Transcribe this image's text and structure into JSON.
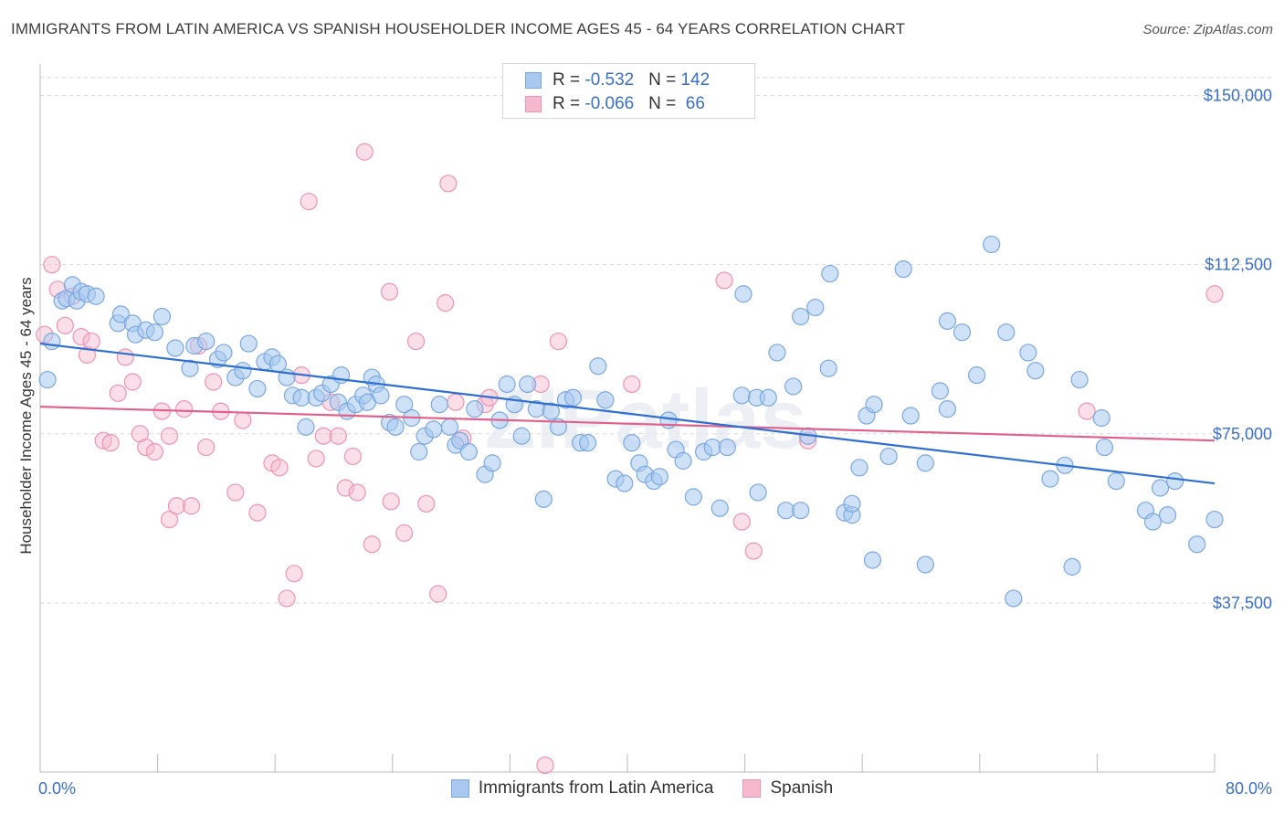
{
  "header": {
    "title": "IMMIGRANTS FROM LATIN AMERICA VS SPANISH HOUSEHOLDER INCOME AGES 45 - 64 YEARS CORRELATION CHART",
    "source": "Source: ZipAtlas.com"
  },
  "legend": {
    "rows": [
      {
        "r_label": "R = ",
        "r_value": "-0.532",
        "n_label": "   N = ",
        "n_value": "142"
      },
      {
        "r_label": "R = ",
        "r_value": "-0.066",
        "n_label": "   N = ",
        "n_value": " 66"
      }
    ]
  },
  "colors": {
    "blue_fill": "#a8c8f0",
    "blue_stroke": "#7aa8e0",
    "blue_line": "#2e6fd1",
    "pink_fill": "#f5b8cc",
    "pink_stroke": "#ee93b1",
    "pink_line": "#e0628c",
    "axis_label": "#3a6fc4",
    "grid": "#d9d9d9"
  },
  "watermark": "ZIPatlas",
  "chart_data": {
    "type": "scatter",
    "title": "IMMIGRANTS FROM LATIN AMERICA VS SPANISH HOUSEHOLDER INCOME AGES 45 - 64 YEARS CORRELATION CHART",
    "xlabel": "",
    "ylabel": "Householder Income Ages 45 - 64 years",
    "xlim": [
      0,
      80
    ],
    "ylim": [
      0,
      157000
    ],
    "x_tick_labels": [
      "0.0%",
      "80.0%"
    ],
    "y_ticks": [
      37500,
      75000,
      112500,
      150000
    ],
    "y_tick_labels": [
      "$37,500",
      "$75,000",
      "$112,500",
      "$150,000"
    ],
    "grid": true,
    "legend_position": "bottom",
    "series": [
      {
        "name": "Immigrants from Latin America",
        "r": -0.532,
        "n": 142,
        "trend": {
          "x": [
            0,
            80
          ],
          "y": [
            95000,
            64000
          ]
        },
        "points": [
          [
            0.5,
            87000
          ],
          [
            0.8,
            95500
          ],
          [
            1.5,
            104500
          ],
          [
            1.8,
            105000
          ],
          [
            2.2,
            108000
          ],
          [
            2.5,
            104500
          ],
          [
            2.8,
            106500
          ],
          [
            3.2,
            106000
          ],
          [
            3.8,
            105500
          ],
          [
            5.3,
            99500
          ],
          [
            5.5,
            101500
          ],
          [
            6.3,
            99500
          ],
          [
            6.5,
            97000
          ],
          [
            7.2,
            98000
          ],
          [
            7.8,
            97500
          ],
          [
            8.3,
            101000
          ],
          [
            9.2,
            94000
          ],
          [
            10.2,
            89500
          ],
          [
            10.5,
            94500
          ],
          [
            11.3,
            95500
          ],
          [
            12.1,
            91500
          ],
          [
            12.5,
            93000
          ],
          [
            13.3,
            87500
          ],
          [
            13.8,
            89000
          ],
          [
            14.2,
            95000
          ],
          [
            14.8,
            85000
          ],
          [
            15.3,
            91000
          ],
          [
            15.8,
            92000
          ],
          [
            16.2,
            90500
          ],
          [
            16.8,
            87500
          ],
          [
            17.2,
            83500
          ],
          [
            17.8,
            83000
          ],
          [
            18.1,
            76500
          ],
          [
            18.8,
            83000
          ],
          [
            19.2,
            84000
          ],
          [
            19.8,
            86000
          ],
          [
            20.3,
            82000
          ],
          [
            20.5,
            88000
          ],
          [
            20.9,
            80000
          ],
          [
            21.5,
            81500
          ],
          [
            22.0,
            83500
          ],
          [
            22.3,
            82000
          ],
          [
            22.6,
            87500
          ],
          [
            22.9,
            86000
          ],
          [
            23.2,
            83500
          ],
          [
            23.8,
            77500
          ],
          [
            24.2,
            76500
          ],
          [
            24.8,
            81500
          ],
          [
            25.3,
            78500
          ],
          [
            25.8,
            71000
          ],
          [
            26.2,
            74500
          ],
          [
            26.8,
            76000
          ],
          [
            27.2,
            81500
          ],
          [
            27.9,
            76500
          ],
          [
            28.3,
            72500
          ],
          [
            28.6,
            73500
          ],
          [
            29.2,
            71000
          ],
          [
            29.6,
            80500
          ],
          [
            30.3,
            66000
          ],
          [
            30.8,
            68500
          ],
          [
            31.3,
            78000
          ],
          [
            31.8,
            86000
          ],
          [
            32.3,
            81500
          ],
          [
            32.8,
            74500
          ],
          [
            33.2,
            86000
          ],
          [
            33.8,
            80500
          ],
          [
            34.3,
            60500
          ],
          [
            34.8,
            80000
          ],
          [
            35.3,
            76500
          ],
          [
            35.8,
            82500
          ],
          [
            36.3,
            83000
          ],
          [
            36.8,
            73000
          ],
          [
            37.3,
            73000
          ],
          [
            38.0,
            90000
          ],
          [
            38.5,
            82500
          ],
          [
            39.2,
            65000
          ],
          [
            39.8,
            64000
          ],
          [
            40.3,
            73000
          ],
          [
            40.8,
            68500
          ],
          [
            41.2,
            66000
          ],
          [
            41.8,
            64500
          ],
          [
            42.2,
            65500
          ],
          [
            42.8,
            78000
          ],
          [
            43.3,
            71500
          ],
          [
            43.8,
            69000
          ],
          [
            44.5,
            61000
          ],
          [
            45.2,
            71000
          ],
          [
            45.8,
            72000
          ],
          [
            46.3,
            58500
          ],
          [
            46.8,
            72000
          ],
          [
            47.8,
            83500
          ],
          [
            47.9,
            106000
          ],
          [
            48.8,
            83000
          ],
          [
            48.9,
            62000
          ],
          [
            49.6,
            83000
          ],
          [
            50.2,
            93000
          ],
          [
            50.8,
            58000
          ],
          [
            51.3,
            85500
          ],
          [
            51.8,
            58000
          ],
          [
            52.3,
            74500
          ],
          [
            51.8,
            101000
          ],
          [
            52.8,
            103000
          ],
          [
            53.7,
            89500
          ],
          [
            53.8,
            110500
          ],
          [
            54.8,
            57500
          ],
          [
            55.3,
            57000
          ],
          [
            55.8,
            67500
          ],
          [
            56.3,
            79000
          ],
          [
            56.8,
            81500
          ],
          [
            56.7,
            47000
          ],
          [
            57.8,
            70000
          ],
          [
            58.8,
            111500
          ],
          [
            59.3,
            79000
          ],
          [
            60.3,
            68500
          ],
          [
            60.3,
            46000
          ],
          [
            61.3,
            84500
          ],
          [
            61.8,
            100000
          ],
          [
            61.8,
            80500
          ],
          [
            62.8,
            97500
          ],
          [
            63.8,
            88000
          ],
          [
            64.8,
            117000
          ],
          [
            65.8,
            97500
          ],
          [
            66.3,
            38500
          ],
          [
            67.3,
            93000
          ],
          [
            67.8,
            89000
          ],
          [
            68.8,
            65000
          ],
          [
            69.8,
            68000
          ],
          [
            70.3,
            45500
          ],
          [
            70.8,
            87000
          ],
          [
            72.3,
            78500
          ],
          [
            72.5,
            72000
          ],
          [
            73.3,
            64500
          ],
          [
            75.3,
            58000
          ],
          [
            75.8,
            55500
          ],
          [
            76.3,
            63000
          ],
          [
            76.8,
            57000
          ],
          [
            77.3,
            64500
          ],
          [
            78.8,
            50500
          ],
          [
            80.0,
            56000
          ],
          [
            55.3,
            59500
          ]
        ]
      },
      {
        "name": "Spanish",
        "r": -0.066,
        "n": 66,
        "trend": {
          "x": [
            0,
            80
          ],
          "y": [
            81000,
            73500
          ]
        },
        "points": [
          [
            0.3,
            97000
          ],
          [
            0.8,
            112500
          ],
          [
            1.2,
            107000
          ],
          [
            1.7,
            99000
          ],
          [
            2.2,
            105500
          ],
          [
            2.8,
            96500
          ],
          [
            3.2,
            92500
          ],
          [
            3.5,
            95500
          ],
          [
            4.3,
            73500
          ],
          [
            4.8,
            73000
          ],
          [
            5.3,
            84000
          ],
          [
            5.8,
            92000
          ],
          [
            6.3,
            86500
          ],
          [
            6.8,
            75000
          ],
          [
            7.2,
            72000
          ],
          [
            7.8,
            71000
          ],
          [
            8.3,
            80000
          ],
          [
            8.8,
            56000
          ],
          [
            9.3,
            59000
          ],
          [
            9.8,
            80500
          ],
          [
            10.3,
            59000
          ],
          [
            10.8,
            94500
          ],
          [
            11.3,
            72000
          ],
          [
            11.8,
            86500
          ],
          [
            12.3,
            80000
          ],
          [
            13.3,
            62000
          ],
          [
            13.8,
            78000
          ],
          [
            14.8,
            57500
          ],
          [
            15.8,
            68500
          ],
          [
            16.3,
            67500
          ],
          [
            16.8,
            38500
          ],
          [
            17.3,
            44000
          ],
          [
            17.8,
            88000
          ],
          [
            18.3,
            126500
          ],
          [
            18.8,
            69500
          ],
          [
            19.3,
            74500
          ],
          [
            19.8,
            82000
          ],
          [
            20.3,
            74500
          ],
          [
            20.8,
            63000
          ],
          [
            21.3,
            70000
          ],
          [
            21.6,
            62000
          ],
          [
            22.1,
            137500
          ],
          [
            22.6,
            50500
          ],
          [
            23.8,
            106500
          ],
          [
            23.9,
            60000
          ],
          [
            24.8,
            53000
          ],
          [
            25.6,
            95500
          ],
          [
            26.3,
            59500
          ],
          [
            27.1,
            39500
          ],
          [
            27.6,
            104000
          ],
          [
            27.8,
            130500
          ],
          [
            28.3,
            82000
          ],
          [
            28.8,
            74000
          ],
          [
            30.3,
            81500
          ],
          [
            30.6,
            83000
          ],
          [
            34.1,
            86000
          ],
          [
            34.4,
            1500
          ],
          [
            35.3,
            95500
          ],
          [
            40.3,
            86000
          ],
          [
            46.6,
            109000
          ],
          [
            47.8,
            55500
          ],
          [
            48.6,
            49000
          ],
          [
            52.3,
            73500
          ],
          [
            71.3,
            80000
          ],
          [
            80.0,
            106000
          ],
          [
            8.8,
            74500
          ]
        ]
      }
    ]
  },
  "bottom_legend": [
    {
      "label": "Immigrants from Latin America"
    },
    {
      "label": "Spanish"
    }
  ]
}
